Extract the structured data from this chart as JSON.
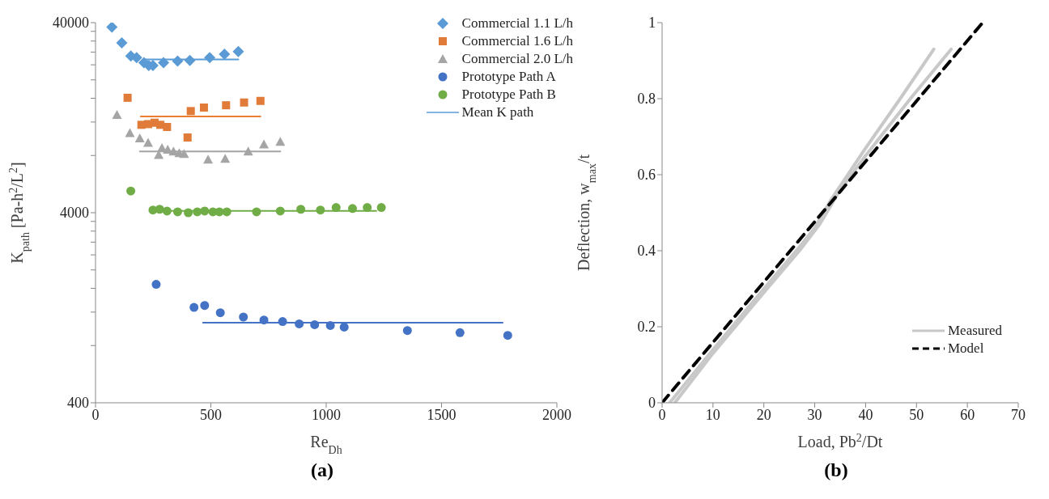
{
  "chart_data": [
    {
      "type": "scatter",
      "title": "(a)",
      "xlabel": "Re$_{Dh}$",
      "ylabel": "K$_{path}$ [Pa-h$^{2}$/L$^{2}$]",
      "log": "y",
      "xlim": [
        0,
        2000
      ],
      "xticks": [
        0,
        500,
        1000,
        1500,
        2000
      ],
      "ylim": [
        400,
        40000
      ],
      "yticks": [
        400,
        {
          "value": 800,
          "label": null
        },
        {
          "value": 1200,
          "label": null
        },
        {
          "value": 1600,
          "label": null
        },
        {
          "value": 2000,
          "label": null
        },
        {
          "value": 2400,
          "label": null
        },
        {
          "value": 2800,
          "label": null
        },
        {
          "value": 3200,
          "label": null
        },
        {
          "value": 3600,
          "label": null
        },
        4000,
        {
          "value": 8000,
          "label": null
        },
        {
          "value": 12000,
          "label": null
        },
        {
          "value": 16000,
          "label": null
        },
        {
          "value": 20000,
          "label": null
        },
        {
          "value": 24000,
          "label": null
        },
        {
          "value": 28000,
          "label": null
        },
        {
          "value": 32000,
          "label": null
        },
        {
          "value": 36000,
          "label": null
        },
        40000
      ],
      "legend": "top right",
      "series": [
        {
          "name": "Commercial 1.1 L/h",
          "color": "#5b9bd5",
          "marker": "diamond",
          "x": [
            71,
            114,
            153,
            178,
            210,
            231,
            249,
            295,
            356,
            409,
            495,
            559,
            619
          ],
          "values": [
            37900,
            31300,
            26700,
            26200,
            24600,
            23800,
            23800,
            24600,
            25100,
            25300,
            26200,
            27300,
            28200
          ]
        },
        {
          "name": "Commercial 1.6 L/h",
          "color": "#e07b39",
          "marker": "square",
          "x": [
            139,
            199,
            228,
            256,
            281,
            310,
            399,
            413,
            470,
            566,
            644,
            715
          ],
          "values": [
            16100,
            11600,
            11700,
            11900,
            11600,
            11300,
            9950,
            13700,
            14300,
            14700,
            15200,
            15500
          ]
        },
        {
          "name": "Commercial 2.0 L/h",
          "color": "#a5a5a5",
          "marker": "triangle",
          "x": [
            93,
            149,
            192,
            228,
            274,
            288,
            313,
            338,
            363,
            384,
            488,
            562,
            662,
            730,
            801
          ],
          "values": [
            13100,
            10500,
            9850,
            9340,
            8050,
            8770,
            8580,
            8400,
            8240,
            8150,
            7620,
            7700,
            8400,
            9150,
            9440
          ]
        },
        {
          "name": "Prototype Path A",
          "color": "#4472c4",
          "marker": "circle",
          "x": [
            263,
            427,
            473,
            541,
            641,
            730,
            811,
            883,
            950,
            1018,
            1078,
            1352,
            1580,
            1787
          ],
          "values": [
            1680,
            1270,
            1300,
            1190,
            1130,
            1090,
            1070,
            1040,
            1030,
            1020,
            1000,
            960,
            935,
            905
          ]
        },
        {
          "name": "Prototype Path B",
          "color": "#70ad47",
          "marker": "circle",
          "x": [
            153,
            249,
            278,
            310,
            356,
            402,
            441,
            473,
            509,
            537,
            569,
            698,
            801,
            890,
            975,
            1043,
            1114,
            1178,
            1239
          ],
          "values": [
            5200,
            4130,
            4170,
            4080,
            4040,
            4000,
            4040,
            4080,
            4040,
            4040,
            4040,
            4040,
            4080,
            4170,
            4130,
            4260,
            4210,
            4260,
            4260
          ]
        },
        {
          "name": "Mean K path",
          "type": "line",
          "color": "#5b9bd5",
          "x": [
            210,
            619
          ],
          "values": [
            25600,
            25600
          ]
        },
        {
          "type": "line",
          "color": "#ed7d31",
          "x": [
            196,
            715
          ],
          "values": [
            12850,
            12850
          ]
        },
        {
          "type": "line",
          "color": "#a5a5a5",
          "x": [
            192,
            801
          ],
          "values": [
            8400,
            8400
          ]
        },
        {
          "type": "line",
          "color": "#70ad47",
          "x": [
            249,
            1217
          ],
          "values": [
            4090,
            4090
          ]
        },
        {
          "type": "line",
          "color": "#4472c4",
          "x": [
            466,
            1765
          ],
          "values": [
            1055,
            1055
          ]
        }
      ]
    },
    {
      "type": "line",
      "title": "(b)",
      "xlabel": "Load, Pb$^{2}$/Dt",
      "ylabel": "Deflection, w$_{max}$/t",
      "xlim": [
        0,
        70
      ],
      "xticks": [
        0,
        10,
        20,
        30,
        40,
        50,
        60,
        70
      ],
      "ylim": [
        0,
        1
      ],
      "yticks": [
        0,
        0.2,
        0.4,
        0.6,
        0.8,
        1
      ],
      "legend": "bottom right",
      "series": [
        {
          "name": "Measured",
          "color": "#c8c8c8",
          "line_style": "solid",
          "x": [
            1.5,
            10,
            20,
            27,
            30,
            33,
            40,
            46.8,
            53.4
          ],
          "values": [
            0,
            0.14,
            0.3,
            0.41,
            0.46,
            0.53,
            0.67,
            0.8,
            0.93
          ]
        },
        {
          "color": "#c8c8c8",
          "line_style": "solid",
          "x": [
            2.5,
            10,
            20,
            27,
            31,
            35,
            40,
            48.8,
            56.8
          ],
          "values": [
            0,
            0.13,
            0.29,
            0.4,
            0.47,
            0.56,
            0.65,
            0.8,
            0.93
          ]
        },
        {
          "name": "Model",
          "color": "#000000",
          "line_style": "dashed",
          "x": [
            0,
            63
          ],
          "values": [
            0,
            1
          ]
        }
      ]
    }
  ]
}
